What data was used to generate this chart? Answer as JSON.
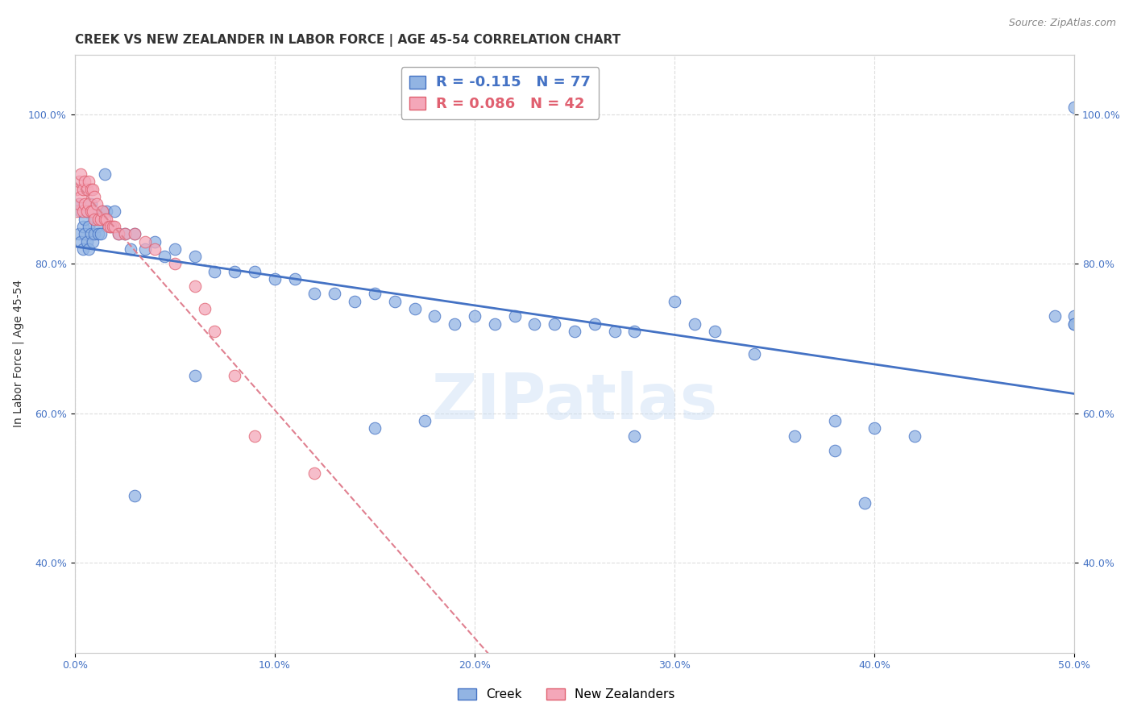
{
  "title": "CREEK VS NEW ZEALANDER IN LABOR FORCE | AGE 45-54 CORRELATION CHART",
  "source_text": "Source: ZipAtlas.com",
  "ylabel": "In Labor Force | Age 45-54",
  "xlim": [
    0.0,
    0.5
  ],
  "ylim": [
    0.28,
    1.08
  ],
  "xticks": [
    0.0,
    0.1,
    0.2,
    0.3,
    0.4,
    0.5
  ],
  "xticklabels": [
    "0.0%",
    "10.0%",
    "20.0%",
    "30.0%",
    "40.0%",
    "50.0%"
  ],
  "yticks": [
    0.4,
    0.6,
    0.8,
    1.0
  ],
  "yticklabels": [
    "40.0%",
    "60.0%",
    "80.0%",
    "100.0%"
  ],
  "grid_color": "#dddddd",
  "watermark": "ZIPatlas",
  "creek_color": "#92b4e3",
  "nz_color": "#f4a7b9",
  "creek_edge_color": "#4472c4",
  "nz_edge_color": "#e06070",
  "creek_line_color": "#4472c4",
  "nz_line_color": "#e08090",
  "creek_x": [
    0.002,
    0.002,
    0.003,
    0.003,
    0.004,
    0.004,
    0.005,
    0.005,
    0.006,
    0.006,
    0.007,
    0.007,
    0.008,
    0.008,
    0.009,
    0.009,
    0.01,
    0.01,
    0.011,
    0.012,
    0.013,
    0.014,
    0.015,
    0.016,
    0.018,
    0.02,
    0.022,
    0.025,
    0.028,
    0.03,
    0.035,
    0.04,
    0.045,
    0.05,
    0.06,
    0.07,
    0.08,
    0.09,
    0.1,
    0.11,
    0.12,
    0.13,
    0.14,
    0.15,
    0.16,
    0.17,
    0.18,
    0.19,
    0.2,
    0.21,
    0.22,
    0.23,
    0.24,
    0.25,
    0.26,
    0.27,
    0.28,
    0.3,
    0.32,
    0.34,
    0.36,
    0.38,
    0.4,
    0.42,
    0.5,
    0.03,
    0.06,
    0.5,
    0.49,
    0.5,
    0.15,
    0.175,
    0.28,
    0.31,
    0.38,
    0.395,
    0.5
  ],
  "creek_y": [
    0.88,
    0.84,
    0.87,
    0.83,
    0.85,
    0.82,
    0.86,
    0.84,
    0.87,
    0.83,
    0.85,
    0.82,
    0.88,
    0.84,
    0.87,
    0.83,
    0.86,
    0.84,
    0.85,
    0.84,
    0.84,
    0.87,
    0.92,
    0.87,
    0.85,
    0.87,
    0.84,
    0.84,
    0.82,
    0.84,
    0.82,
    0.83,
    0.81,
    0.82,
    0.81,
    0.79,
    0.79,
    0.79,
    0.78,
    0.78,
    0.76,
    0.76,
    0.75,
    0.76,
    0.75,
    0.74,
    0.73,
    0.72,
    0.73,
    0.72,
    0.73,
    0.72,
    0.72,
    0.71,
    0.72,
    0.71,
    0.71,
    0.75,
    0.71,
    0.68,
    0.57,
    0.59,
    0.58,
    0.57,
    0.73,
    0.49,
    0.65,
    1.01,
    0.73,
    0.72,
    0.58,
    0.59,
    0.57,
    0.72,
    0.55,
    0.48,
    0.72
  ],
  "nz_x": [
    0.001,
    0.001,
    0.002,
    0.002,
    0.003,
    0.003,
    0.004,
    0.004,
    0.005,
    0.005,
    0.006,
    0.006,
    0.007,
    0.007,
    0.008,
    0.008,
    0.009,
    0.009,
    0.01,
    0.01,
    0.011,
    0.012,
    0.013,
    0.014,
    0.015,
    0.016,
    0.017,
    0.018,
    0.019,
    0.02,
    0.022,
    0.025,
    0.03,
    0.035,
    0.04,
    0.05,
    0.06,
    0.065,
    0.07,
    0.08,
    0.09,
    0.12
  ],
  "nz_y": [
    0.9,
    0.87,
    0.91,
    0.88,
    0.92,
    0.89,
    0.9,
    0.87,
    0.91,
    0.88,
    0.9,
    0.87,
    0.91,
    0.88,
    0.9,
    0.87,
    0.9,
    0.87,
    0.89,
    0.86,
    0.88,
    0.86,
    0.86,
    0.87,
    0.86,
    0.86,
    0.85,
    0.85,
    0.85,
    0.85,
    0.84,
    0.84,
    0.84,
    0.83,
    0.82,
    0.8,
    0.77,
    0.74,
    0.71,
    0.65,
    0.57,
    0.52
  ],
  "title_fontsize": 11,
  "axis_label_fontsize": 10,
  "tick_fontsize": 9,
  "legend_fontsize": 12
}
